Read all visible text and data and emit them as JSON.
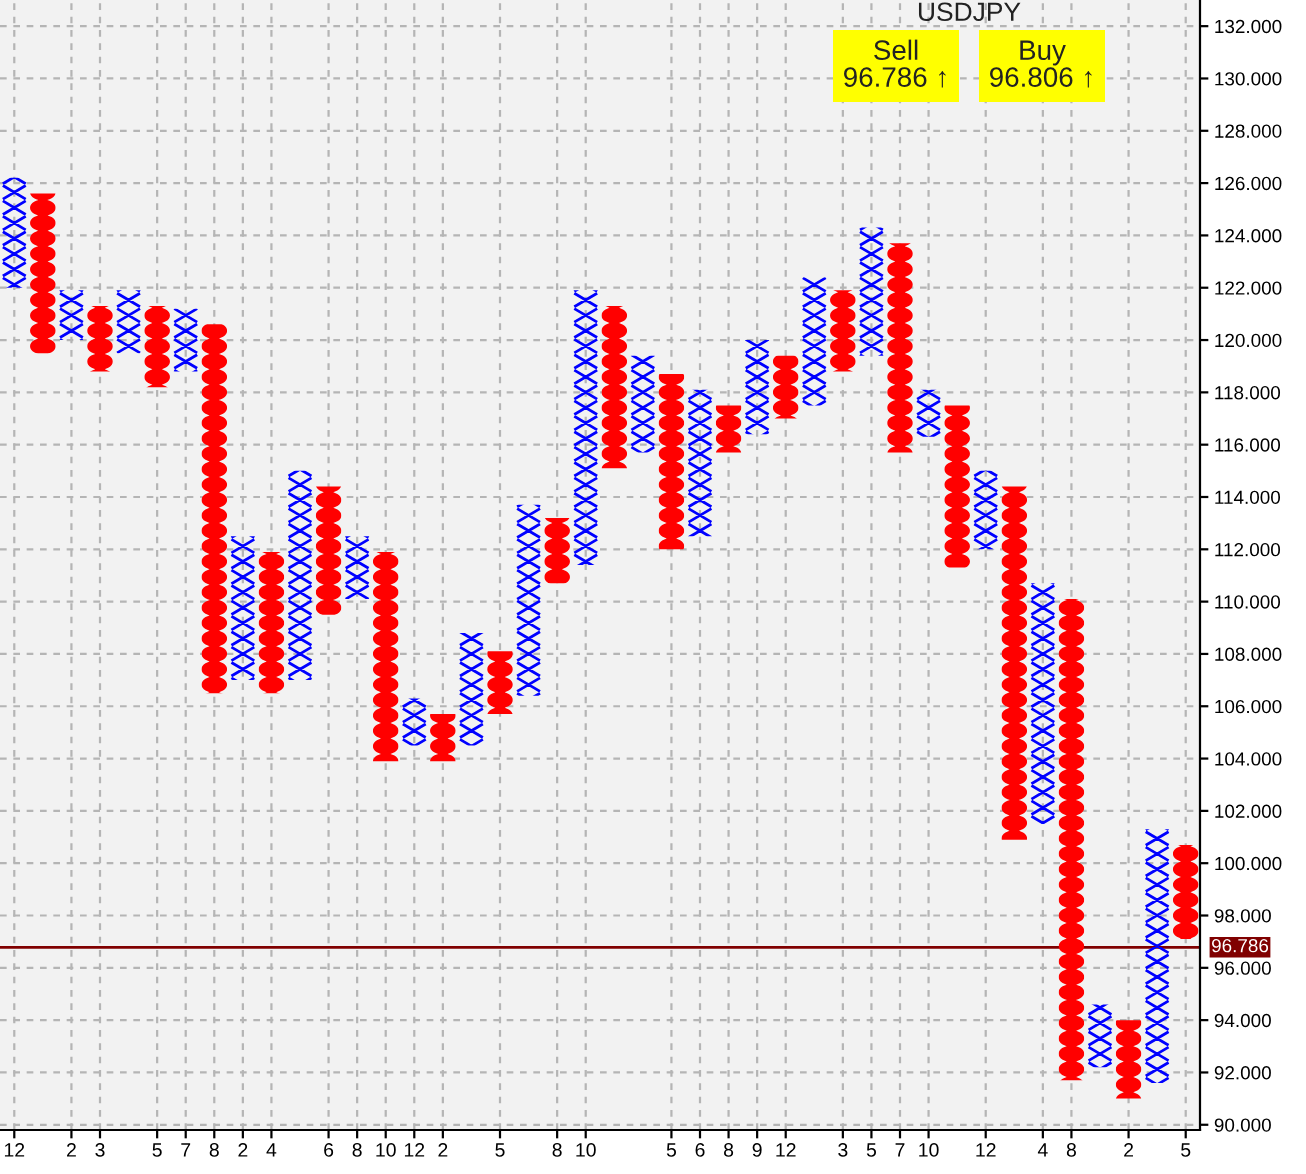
{
  "chart_data": {
    "type": "bar",
    "title": "USDJPY",
    "annotations": [
      "Sell\n96.786 ↑",
      "Buy\n96.806 ↑"
    ],
    "categories": [
      "12",
      null,
      "2",
      "3",
      null,
      "5",
      "7",
      "8",
      "2",
      "4",
      null,
      "6",
      "8",
      "10",
      "12",
      "2",
      null,
      "5",
      null,
      "8",
      "10",
      null,
      null,
      "5",
      "6",
      "8",
      "9",
      "12",
      null,
      "3",
      "5",
      "7",
      "10",
      null,
      "12",
      null,
      "4",
      "8",
      null,
      "2",
      null,
      "5"
    ],
    "series": [
      {
        "color": "#0000ff",
        "marker": "cross",
        "base": [
          122.0,
          null,
          120.0,
          null,
          119.5,
          null,
          118.8,
          null,
          107.0,
          null,
          107.0,
          null,
          110.1,
          null,
          104.5,
          null,
          104.5,
          null,
          106.4,
          null,
          111.4,
          null,
          115.7,
          null,
          112.5,
          null,
          116.4,
          null,
          117.5,
          null,
          119.4,
          null,
          116.3,
          null,
          112.0,
          null,
          101.5,
          null,
          92.2,
          null,
          91.6,
          null
        ],
        "values": [
          4.2,
          null,
          1.9,
          null,
          2.4,
          null,
          2.4,
          null,
          5.5,
          null,
          8.0,
          null,
          2.4,
          null,
          1.8,
          null,
          4.3,
          null,
          7.3,
          null,
          10.5,
          null,
          3.7,
          null,
          5.6,
          null,
          3.6,
          null,
          4.9,
          null,
          4.9,
          null,
          1.8,
          null,
          3.0,
          null,
          9.2,
          null,
          2.4,
          null,
          9.7,
          null
        ]
      },
      {
        "color": "#ff0000",
        "marker": "circle",
        "base": [
          null,
          119.5,
          null,
          118.8,
          null,
          118.2,
          null,
          106.5,
          null,
          106.5,
          null,
          109.5,
          null,
          103.9,
          null,
          103.9,
          null,
          105.7,
          null,
          110.7,
          null,
          115.1,
          null,
          112.0,
          null,
          115.7,
          null,
          117.0,
          null,
          118.8,
          null,
          115.7,
          null,
          111.3,
          null,
          100.9,
          null,
          91.7,
          null,
          91.0,
          null,
          97.1
        ],
        "values": [
          null,
          6.1,
          null,
          2.5,
          null,
          3.1,
          null,
          14.1,
          null,
          5.4,
          null,
          4.9,
          null,
          8.0,
          null,
          1.8,
          null,
          2.4,
          null,
          2.5,
          null,
          6.2,
          null,
          6.7,
          null,
          1.8,
          null,
          2.4,
          null,
          3.1,
          null,
          8.0,
          null,
          6.2,
          null,
          13.5,
          null,
          18.4,
          null,
          3.0,
          null,
          3.6
        ]
      }
    ],
    "ylim": [
      89.8,
      133
    ],
    "yticks": [
      {
        "value": 90,
        "label": "90.000"
      },
      {
        "value": 92,
        "label": "92.000"
      },
      {
        "value": 94,
        "label": "94.000"
      },
      {
        "value": 96,
        "label": "96.000"
      },
      {
        "value": 98,
        "label": "98.000"
      },
      {
        "value": 100,
        "label": "100.000"
      },
      {
        "value": 102,
        "label": "102.000"
      },
      {
        "value": 104,
        "label": "104.000"
      },
      {
        "value": 106,
        "label": "106.000"
      },
      {
        "value": 108,
        "label": "108.000"
      },
      {
        "value": 110,
        "label": "110.000"
      },
      {
        "value": 112,
        "label": "112.000"
      },
      {
        "value": 114,
        "label": "114.000"
      },
      {
        "value": 116,
        "label": "116.000"
      },
      {
        "value": 118,
        "label": "118.000"
      },
      {
        "value": 120,
        "label": "120.000"
      },
      {
        "value": 122,
        "label": "122.000"
      },
      {
        "value": 124,
        "label": "124.000"
      },
      {
        "value": 126,
        "label": "126.000"
      },
      {
        "value": 128,
        "label": "128.000"
      },
      {
        "value": 130,
        "label": "130.000"
      },
      {
        "value": 132,
        "label": "132.000"
      }
    ],
    "grid": true,
    "ref_lines": [
      {
        "axis": "y",
        "value": 96.786,
        "label": "96.786",
        "color": "#800000"
      }
    ]
  }
}
